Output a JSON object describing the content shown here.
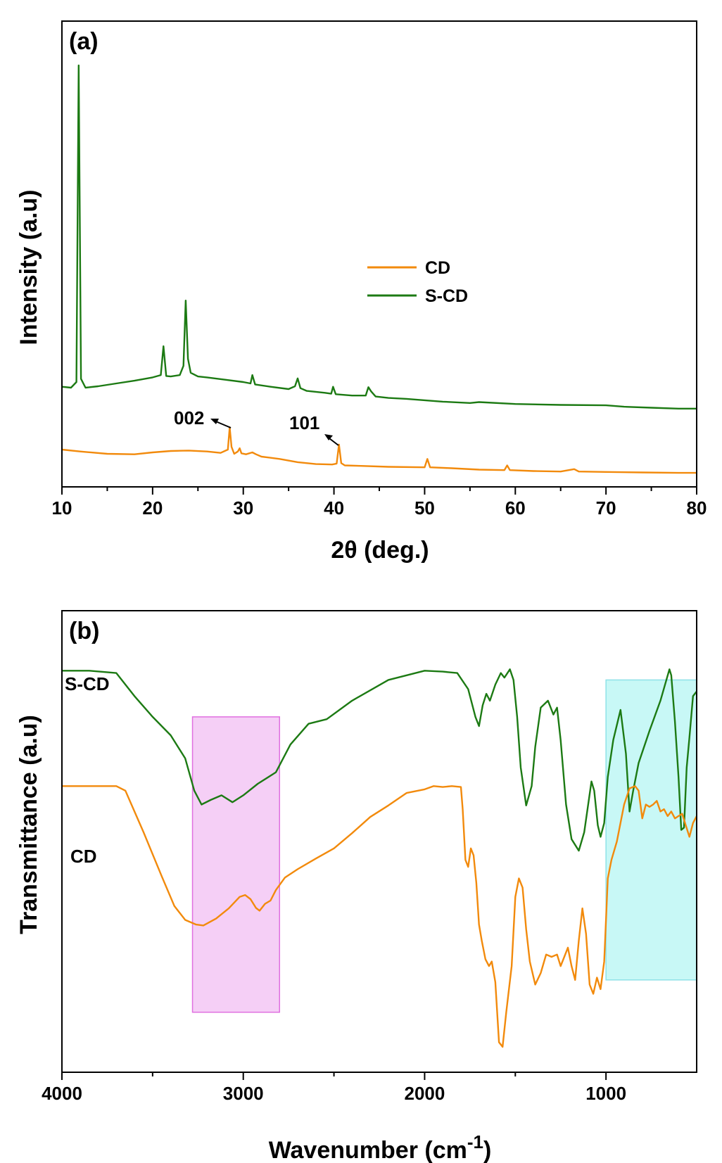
{
  "colors": {
    "CD": "#f28a0c",
    "S-CD": "#1c7a13",
    "magenta_box": "#f5cff6",
    "magenta_edge": "#e070e0",
    "cyan_box": "#c8f8f6",
    "cyan_edge": "#8ee2e8"
  },
  "chart_data": [
    {
      "type": "line",
      "panel_label": "(a)",
      "xlabel": "2θ (deg.)",
      "ylabel": "Intensity (a.u)",
      "xlim": [
        10,
        80
      ],
      "ylim": [
        0,
        100
      ],
      "xticks": [
        10,
        20,
        30,
        40,
        50,
        60,
        70,
        80
      ],
      "xtick_labels": [
        "10",
        "20",
        "30",
        "40",
        "50",
        "60",
        "70",
        "80"
      ],
      "legend": {
        "placement": "center",
        "entries": [
          "CD",
          "S-CD"
        ]
      },
      "annotations": [
        {
          "text": "002",
          "x": 28.6
        },
        {
          "text": "101",
          "x": 40.6
        }
      ],
      "series": [
        {
          "name": "CD",
          "color": "#f28a0c",
          "x": [
            10,
            12,
            15,
            18,
            20,
            22,
            24,
            26,
            27.5,
            28.3,
            28.5,
            28.7,
            29.0,
            29.4,
            29.6,
            29.8,
            30.3,
            31,
            31.4,
            32,
            34,
            36,
            38,
            39.8,
            40.3,
            40.55,
            40.8,
            41.2,
            43,
            46,
            50.0,
            50.3,
            50.6,
            53,
            56,
            58.8,
            59.1,
            59.4,
            62,
            65,
            66.5,
            67,
            70,
            74,
            78,
            80
          ],
          "y": [
            8.0,
            7.6,
            7.1,
            7.0,
            7.4,
            7.7,
            7.8,
            7.6,
            7.3,
            8.0,
            12.8,
            8.6,
            7.1,
            7.6,
            8.3,
            7.2,
            7.0,
            7.4,
            7.0,
            6.5,
            6.0,
            5.3,
            4.9,
            4.8,
            5.0,
            9.1,
            5.1,
            4.6,
            4.5,
            4.3,
            4.2,
            6.0,
            4.2,
            4.0,
            3.7,
            3.6,
            4.6,
            3.6,
            3.4,
            3.3,
            3.8,
            3.3,
            3.2,
            3.1,
            3.0,
            3.0
          ]
        },
        {
          "name": "S-CD",
          "color": "#1c7a13",
          "x": [
            10,
            11.0,
            11.6,
            11.85,
            12.1,
            12.6,
            14,
            16,
            18,
            20,
            20.9,
            21.2,
            21.5,
            22,
            23,
            23.4,
            23.65,
            23.9,
            24.2,
            25,
            26,
            28,
            30,
            30.8,
            31,
            31.3,
            33,
            35,
            35.7,
            36.0,
            36.3,
            37,
            39,
            39.7,
            39.9,
            40.2,
            42,
            43.5,
            43.8,
            44.1,
            44.6,
            46,
            48,
            50,
            52,
            55,
            56,
            60,
            65,
            70,
            72,
            75,
            78,
            80
          ],
          "y": [
            21.5,
            21.3,
            22.5,
            90.5,
            23.2,
            21.3,
            21.6,
            22.2,
            22.8,
            23.5,
            24.0,
            30.2,
            23.8,
            23.7,
            24.0,
            26.0,
            40.0,
            27.5,
            24.5,
            23.7,
            23.5,
            23.0,
            22.5,
            22.2,
            24.0,
            22.0,
            21.5,
            21.0,
            21.6,
            23.3,
            21.2,
            20.6,
            20.2,
            20.0,
            21.5,
            19.9,
            19.6,
            19.6,
            21.4,
            20.5,
            19.4,
            19.1,
            18.9,
            18.6,
            18.3,
            18.0,
            18.2,
            17.8,
            17.6,
            17.5,
            17.2,
            17.0,
            16.8,
            16.8
          ]
        }
      ]
    },
    {
      "type": "line",
      "panel_label": "(b)",
      "xlabel_main": "Wavenumber (cm",
      "xlabel_sup": "-1",
      "xlabel_close": ")",
      "ylabel": "Transmittance (a.u)",
      "xlim": [
        4000,
        500
      ],
      "ylim": [
        0,
        100
      ],
      "xticks": [
        4000,
        3000,
        2000,
        1000
      ],
      "xtick_labels": [
        "4000",
        "3000",
        "2000",
        "1000"
      ],
      "series_labels": [
        {
          "text": "S-CD",
          "series": "S-CD"
        },
        {
          "text": "CD",
          "series": "CD"
        }
      ],
      "highlight_regions": [
        {
          "x": [
            3280,
            2800
          ],
          "y": [
            13,
            77
          ],
          "color": "#f5cff6"
        },
        {
          "x": [
            1000,
            500
          ],
          "y": [
            20,
            85
          ],
          "color": "#c8f8f6"
        }
      ],
      "series": [
        {
          "name": "S-CD",
          "color": "#1c7a13",
          "x": [
            4000,
            3850,
            3700,
            3600,
            3500,
            3400,
            3320,
            3270,
            3230,
            3180,
            3120,
            3060,
            3000,
            2920,
            2820,
            2740,
            2640,
            2540,
            2400,
            2200,
            2000,
            1900,
            1820,
            1760,
            1720,
            1700,
            1680,
            1660,
            1640,
            1610,
            1580,
            1560,
            1530,
            1510,
            1490,
            1470,
            1440,
            1410,
            1390,
            1360,
            1320,
            1290,
            1270,
            1250,
            1220,
            1190,
            1150,
            1120,
            1080,
            1065,
            1045,
            1030,
            1010,
            990,
            960,
            920,
            890,
            870,
            850,
            820,
            760,
            700,
            650,
            640,
            620,
            600,
            585,
            570,
            555,
            540,
            520,
            500
          ],
          "y": [
            87.0,
            87.0,
            86.5,
            81.5,
            77.0,
            73.0,
            68.0,
            61.0,
            58.0,
            59.0,
            60.0,
            58.5,
            60.0,
            62.5,
            65.0,
            71.0,
            75.5,
            76.5,
            80.5,
            85.0,
            87.0,
            86.8,
            86.5,
            83.0,
            77.0,
            75.0,
            79.5,
            82.0,
            80.5,
            84.0,
            86.5,
            85.5,
            87.3,
            85.0,
            77.0,
            66.0,
            57.8,
            62.0,
            70.5,
            79.0,
            80.5,
            77.5,
            79.0,
            72.0,
            58.0,
            50.5,
            48.0,
            52.0,
            63.0,
            61.0,
            53.5,
            51.0,
            54.0,
            64.0,
            72.0,
            78.5,
            69.0,
            56.5,
            61.0,
            67.0,
            74.0,
            80.5,
            87.3,
            86.0,
            76.0,
            64.0,
            52.5,
            53.0,
            66.0,
            72.5,
            81.5,
            82.5
          ]
        },
        {
          "name": "CD",
          "color": "#f28a0c",
          "x": [
            4000,
            3850,
            3700,
            3650,
            3550,
            3450,
            3380,
            3320,
            3260,
            3220,
            3150,
            3080,
            3020,
            2990,
            2960,
            2930,
            2910,
            2880,
            2850,
            2820,
            2770,
            2700,
            2600,
            2500,
            2400,
            2300,
            2200,
            2100,
            2000,
            1950,
            1900,
            1850,
            1800,
            1790,
            1775,
            1760,
            1745,
            1730,
            1715,
            1700,
            1685,
            1665,
            1645,
            1630,
            1610,
            1590,
            1570,
            1550,
            1520,
            1500,
            1480,
            1460,
            1440,
            1420,
            1390,
            1360,
            1330,
            1300,
            1270,
            1250,
            1230,
            1210,
            1190,
            1170,
            1150,
            1130,
            1110,
            1090,
            1070,
            1050,
            1030,
            1010,
            990,
            970,
            940,
            900,
            870,
            840,
            820,
            800,
            780,
            760,
            740,
            720,
            700,
            680,
            660,
            640,
            620,
            600,
            580,
            560,
            540,
            520,
            500
          ],
          "y": [
            62.0,
            62.0,
            62.0,
            61.0,
            52.0,
            42.5,
            36.0,
            33.0,
            32.0,
            31.8,
            33.3,
            35.5,
            38.0,
            38.4,
            37.5,
            35.6,
            35.0,
            36.5,
            37.2,
            39.5,
            42.2,
            44.0,
            46.3,
            48.5,
            51.8,
            55.3,
            57.8,
            60.5,
            61.3,
            62.0,
            61.8,
            62.0,
            61.8,
            57.0,
            46.0,
            44.5,
            48.5,
            47.0,
            41.0,
            32.0,
            28.5,
            24.5,
            23.0,
            24.0,
            19.5,
            6.5,
            5.5,
            13.0,
            23.0,
            38.0,
            42.0,
            40.0,
            31.0,
            24.0,
            19.0,
            21.5,
            25.5,
            25.0,
            25.5,
            23.0,
            25.0,
            27.0,
            23.0,
            20.0,
            28.5,
            35.5,
            30.0,
            19.0,
            17.0,
            20.5,
            18.0,
            24.0,
            42.0,
            46.0,
            50.0,
            58.0,
            61.5,
            62.0,
            61.0,
            55.0,
            58.0,
            57.5,
            58.0,
            58.8,
            56.5,
            57.0,
            55.5,
            56.5,
            55.0,
            55.5,
            56.0,
            53.5,
            51.0,
            54.0,
            55.5
          ]
        }
      ]
    }
  ]
}
